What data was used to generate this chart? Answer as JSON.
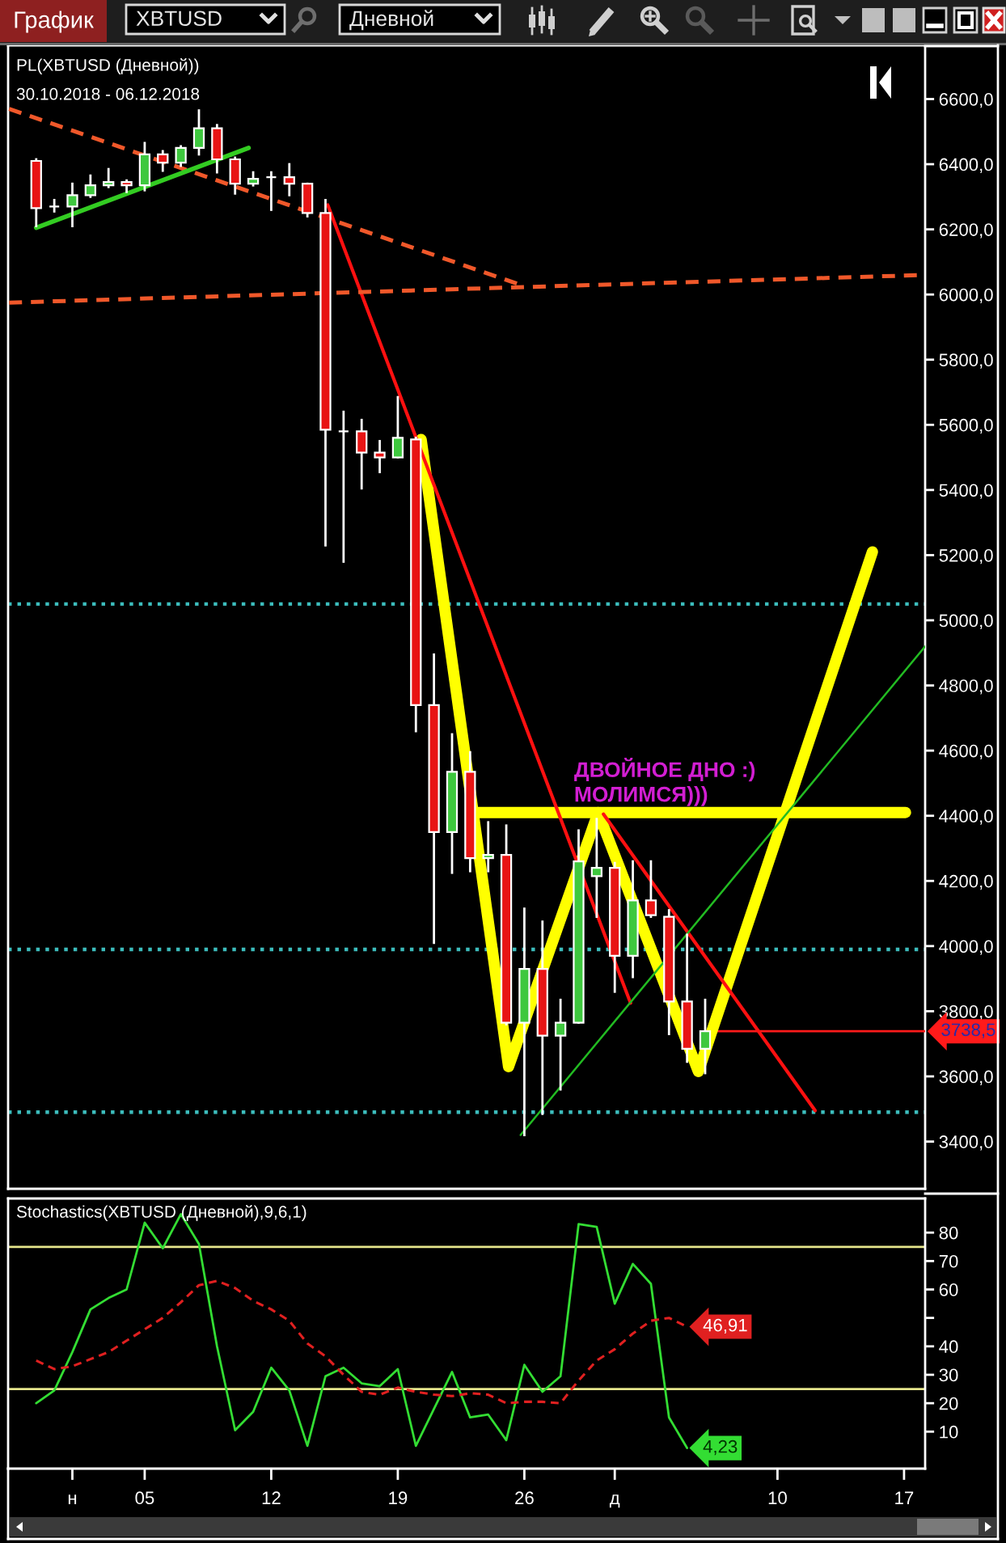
{
  "chart_data": [
    {
      "type": "candlestick",
      "title": "PL(XBTUSD (Дневной))",
      "subtitle": "30.10.2018 - 06.12.2018",
      "x": [
        "2018-10-30",
        "2018-10-31",
        "2018-11-01",
        "2018-11-02",
        "2018-11-03",
        "2018-11-04",
        "2018-11-05",
        "2018-11-06",
        "2018-11-07",
        "2018-11-08",
        "2018-11-09",
        "2018-11-10",
        "2018-11-11",
        "2018-11-12",
        "2018-11-13",
        "2018-11-14",
        "2018-11-15",
        "2018-11-16",
        "2018-11-17",
        "2018-11-18",
        "2018-11-19",
        "2018-11-20",
        "2018-11-21",
        "2018-11-22",
        "2018-11-23",
        "2018-11-24",
        "2018-11-25",
        "2018-11-26",
        "2018-11-27",
        "2018-11-28",
        "2018-11-29",
        "2018-11-30",
        "2018-12-01",
        "2018-12-02",
        "2018-12-03",
        "2018-12-04",
        "2018-12-05",
        "2018-12-06"
      ],
      "ohlc": [
        [
          6410,
          6415,
          6210,
          6265
        ],
        [
          6270,
          6290,
          6255,
          6270
        ],
        [
          6270,
          6340,
          6210,
          6305
        ],
        [
          6305,
          6365,
          6300,
          6335
        ],
        [
          6335,
          6385,
          6330,
          6345
        ],
        [
          6345,
          6350,
          6315,
          6335
        ],
        [
          6335,
          6465,
          6320,
          6430
        ],
        [
          6430,
          6440,
          6380,
          6405
        ],
        [
          6405,
          6455,
          6395,
          6450
        ],
        [
          6450,
          6565,
          6430,
          6510
        ],
        [
          6510,
          6520,
          6375,
          6415
        ],
        [
          6415,
          6420,
          6310,
          6340
        ],
        [
          6340,
          6375,
          6335,
          6355
        ],
        [
          6360,
          6375,
          6260,
          6360
        ],
        [
          6360,
          6400,
          6305,
          6340
        ],
        [
          6340,
          6340,
          6240,
          6250
        ],
        [
          6250,
          6290,
          5230,
          5585
        ],
        [
          5580,
          5640,
          5180,
          5580
        ],
        [
          5580,
          5615,
          5405,
          5515
        ],
        [
          5515,
          5550,
          5455,
          5500
        ],
        [
          5500,
          5685,
          5500,
          5560
        ],
        [
          5555,
          5560,
          4660,
          4740
        ],
        [
          4740,
          4895,
          4010,
          4350
        ],
        [
          4350,
          4650,
          4225,
          4535
        ],
        [
          4535,
          4595,
          4230,
          4270
        ],
        [
          4270,
          4380,
          4230,
          4280
        ],
        [
          4280,
          4370,
          3760,
          3765
        ],
        [
          3765,
          4115,
          3420,
          3930
        ],
        [
          3930,
          4075,
          3485,
          3725
        ],
        [
          3725,
          3835,
          3560,
          3765
        ],
        [
          3765,
          4355,
          3765,
          4260
        ],
        [
          4215,
          4390,
          4090,
          4240
        ],
        [
          4240,
          4255,
          3860,
          3970
        ],
        [
          3970,
          4260,
          3905,
          4140
        ],
        [
          4140,
          4260,
          4090,
          4095
        ],
        [
          4090,
          4110,
          3730,
          3830
        ],
        [
          3830,
          4035,
          3645,
          3685
        ],
        [
          3685,
          3835,
          3610,
          3738.5
        ]
      ],
      "colors": [
        "#e81414",
        "#ffffff",
        "#3ec83e",
        "#3ec83e",
        "#3ec83e",
        "#e81414",
        "#3ec83e",
        "#e81414",
        "#3ec83e",
        "#3ec83e",
        "#e81414",
        "#e81414",
        "#3ec83e",
        "#ffffff",
        "#e81414",
        "#e81414",
        "#e81414",
        "#ffffff",
        "#e81414",
        "#e81414",
        "#3ec83e",
        "#e81414",
        "#e81414",
        "#3ec83e",
        "#e81414",
        "#3ec83e",
        "#e81414",
        "#3ec83e",
        "#e81414",
        "#3ec83e",
        "#3ec83e",
        "#3ec83e",
        "#e81414",
        "#3ec83e",
        "#e81414",
        "#e81414",
        "#e81414",
        "#3ec83e"
      ],
      "series": [
        {
          "type": "line",
          "color": "#ffff00",
          "x": [
            "2018-11-20T07:00",
            "2018-11-25T03:00",
            "2018-11-30T02:00",
            "2018-12-05T15:00",
            "2018-12-15T06:00"
          ],
          "values": [
            5555,
            3630,
            4410,
            3615,
            5210
          ]
        },
        {
          "type": "line",
          "color": "#ffff00",
          "x": [
            "2018-11-23T11:00",
            "2018-12-17T02:00"
          ],
          "values": [
            4410,
            4410
          ]
        },
        {
          "type": "line",
          "color": "#ff1010",
          "x": [
            "2018-11-15T03:00",
            "2018-12-01T21:00"
          ],
          "values": [
            6275,
            3825
          ]
        },
        {
          "type": "line",
          "color": "#ff1010",
          "x": [
            "2018-11-30T09:00",
            "2018-12-12T02:00"
          ],
          "values": [
            4405,
            3495
          ]
        },
        {
          "type": "line",
          "color": "#f0582a",
          "line_style": "dashed",
          "x": [
            "2018-10-28T12:00",
            "2018-11-26T01:00"
          ],
          "values": [
            6570,
            6025
          ]
        },
        {
          "type": "line",
          "color": "#f0582a",
          "line_style": "dashed",
          "x": [
            "2018-10-28T12:00",
            "2018-12-18T04:00"
          ],
          "values": [
            5975,
            6060
          ]
        },
        {
          "type": "line",
          "color": "#33cc22",
          "x": [
            "2018-10-30",
            "2018-11-10T18:00"
          ],
          "values": [
            6205,
            6450
          ]
        },
        {
          "type": "line",
          "color": "#22bb22",
          "x": [
            "2018-11-25T19:00",
            "2018-12-18T04:00"
          ],
          "values": [
            3420,
            4920
          ]
        }
      ],
      "xlim": [
        "2018-10-28T10:40",
        "2018-12-18T04:00"
      ],
      "ylim": [
        3255,
        6765
      ],
      "yticks": [
        {
          "value": 3400,
          "label": "3400,0"
        },
        {
          "value": 3600,
          "label": "3600,0"
        },
        {
          "value": 3800,
          "label": "3800,0"
        },
        {
          "value": 4000,
          "label": "4000,0"
        },
        {
          "value": 4200,
          "label": "4200,0"
        },
        {
          "value": 4400,
          "label": "4400,0"
        },
        {
          "value": 4600,
          "label": "4600,0"
        },
        {
          "value": 4800,
          "label": "4800,0"
        },
        {
          "value": 5000,
          "label": "5000,0"
        },
        {
          "value": 5200,
          "label": "5200,0"
        },
        {
          "value": 5400,
          "label": "5400,0"
        },
        {
          "value": 5600,
          "label": "5600,0"
        },
        {
          "value": 5800,
          "label": "5800,0"
        },
        {
          "value": 6000,
          "label": "6000,0"
        },
        {
          "value": 6200,
          "label": "6200,0"
        },
        {
          "value": 6400,
          "label": "6400,0"
        },
        {
          "value": 6600,
          "label": "6600,0"
        }
      ],
      "tick_labels": "y",
      "ref_lines": [
        {
          "axis": "y",
          "value": 5050,
          "color": "#3cbcbc",
          "line_style": "dotted"
        },
        {
          "axis": "y",
          "value": 3990,
          "color": "#3cbcbc",
          "line_style": "dotted"
        },
        {
          "axis": "y",
          "value": 3490,
          "color": "#3cbcbc",
          "line_style": "dotted"
        },
        {
          "axis": "y",
          "value": 3738.5,
          "label": "3738,5",
          "color": "#ff1a1a"
        }
      ],
      "annotations": [
        "График",
        "XBTUSD",
        "Дневной",
        {
          "text": "ДВОЙНОЕ ДНО :)\nМОЛИМСЯ)))",
          "x": "2018-11-28T18:00",
          "y": 4430
        }
      ]
    },
    {
      "type": "line",
      "title": "Stochastics(XBTUSD (Дневной),9,6,1)",
      "x": [
        "2018-10-30",
        "2018-10-31",
        "2018-11-01",
        "2018-11-02",
        "2018-11-03",
        "2018-11-04",
        "2018-11-05",
        "2018-11-06",
        "2018-11-07",
        "2018-11-08",
        "2018-11-09",
        "2018-11-10",
        "2018-11-11",
        "2018-11-12",
        "2018-11-13",
        "2018-11-14",
        "2018-11-15",
        "2018-11-16",
        "2018-11-17",
        "2018-11-18",
        "2018-11-19",
        "2018-11-20",
        "2018-11-21",
        "2018-11-22",
        "2018-11-23",
        "2018-11-24",
        "2018-11-25",
        "2018-11-26",
        "2018-11-27",
        "2018-11-28",
        "2018-11-29",
        "2018-11-30",
        "2018-12-01",
        "2018-12-02",
        "2018-12-03",
        "2018-12-04",
        "2018-12-05"
      ],
      "series": [
        {
          "color": "#33dd33",
          "values": [
            20,
            24.5,
            38,
            53,
            57,
            60,
            83.5,
            74.5,
            86.5,
            76,
            40,
            10.5,
            17,
            32.5,
            24.5,
            5,
            29.5,
            32.5,
            27,
            26,
            32,
            5,
            18,
            31,
            15,
            16,
            7,
            33.5,
            24,
            29.5,
            83,
            82,
            55,
            69,
            62,
            15,
            4.23
          ],
          "value_labels": [
            null,
            null,
            null,
            null,
            null,
            null,
            null,
            null,
            null,
            null,
            null,
            null,
            null,
            null,
            null,
            null,
            null,
            null,
            null,
            null,
            null,
            null,
            null,
            null,
            null,
            null,
            null,
            null,
            null,
            null,
            null,
            null,
            null,
            null,
            null,
            null,
            "4,23"
          ]
        },
        {
          "color": "#e02020",
          "line_style": "dashed",
          "values": [
            35,
            32,
            33,
            35.5,
            38,
            42,
            46,
            50,
            55.5,
            61.5,
            63,
            60.5,
            56,
            53,
            49,
            41,
            36.5,
            30,
            24,
            23,
            25.5,
            24,
            23,
            22.5,
            23.5,
            23,
            20,
            20.5,
            20.5,
            20,
            28,
            35,
            39,
            44.5,
            49,
            50,
            46.91
          ],
          "value_labels": [
            null,
            null,
            null,
            null,
            null,
            null,
            null,
            null,
            null,
            null,
            null,
            null,
            null,
            null,
            null,
            null,
            null,
            null,
            null,
            null,
            null,
            null,
            null,
            null,
            null,
            null,
            null,
            null,
            null,
            null,
            null,
            null,
            null,
            null,
            null,
            null,
            "46,91"
          ]
        }
      ],
      "xlim": [
        "2018-10-28T10:40",
        "2018-12-18T04:00"
      ],
      "xticks": [
        {
          "value": "2018-11-01",
          "label": "н"
        },
        {
          "value": "2018-11-05",
          "label": "05"
        },
        {
          "value": "2018-11-12",
          "label": "12"
        },
        {
          "value": "2018-11-19",
          "label": "19"
        },
        {
          "value": "2018-11-26",
          "label": "26"
        },
        {
          "value": "2018-12-01",
          "label": "д"
        },
        {
          "value": "2018-12-10",
          "label": "10"
        },
        {
          "value": "2018-12-17",
          "label": "17"
        }
      ],
      "ylim": [
        -3,
        92
      ],
      "yticks": [
        10,
        20,
        30,
        40,
        {
          "value": 50,
          "label": null
        },
        60,
        70,
        80
      ],
      "ref_lines": [
        {
          "axis": "y",
          "value": 75,
          "color": "#e6e68c"
        },
        {
          "axis": "y",
          "value": 25,
          "color": "#e6e68c"
        }
      ]
    }
  ]
}
